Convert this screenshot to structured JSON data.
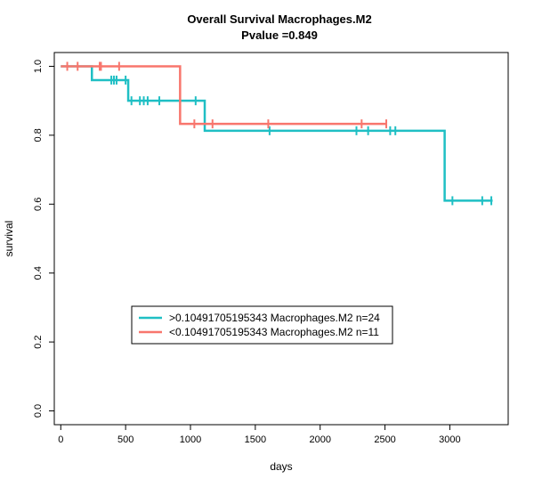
{
  "chart_data": {
    "type": "line",
    "subtype": "kaplan-meier",
    "title": "Overall Survival Macrophages.M2",
    "subtitle": "Pvalue =0.849",
    "xlabel": "days",
    "ylabel": "survival",
    "xlim": [
      -50,
      3450
    ],
    "ylim": [
      -0.04,
      1.04
    ],
    "xticks": [
      0,
      500,
      1000,
      1500,
      2000,
      2500,
      3000
    ],
    "yticks": [
      0.0,
      0.2,
      0.4,
      0.6,
      0.8,
      1.0
    ],
    "ytick_labels": [
      "0.0",
      "0.2",
      "0.4",
      "0.6",
      "0.8",
      "1.0"
    ],
    "grid": false,
    "legend_position": "bottom-center",
    "series": [
      {
        "name": ">0.10491705195343 Macrophages.M2 n=24",
        "color": "#1fbfc4",
        "steps": [
          {
            "x": 0,
            "y": 1.0
          },
          {
            "x": 240,
            "y": 0.96
          },
          {
            "x": 520,
            "y": 0.9
          },
          {
            "x": 1110,
            "y": 0.813
          },
          {
            "x": 2960,
            "y": 0.61
          },
          {
            "x": 3330,
            "y": 0.61
          }
        ],
        "censors": [
          {
            "x": 390,
            "y": 0.96
          },
          {
            "x": 410,
            "y": 0.96
          },
          {
            "x": 430,
            "y": 0.96
          },
          {
            "x": 500,
            "y": 0.96
          },
          {
            "x": 545,
            "y": 0.9
          },
          {
            "x": 610,
            "y": 0.9
          },
          {
            "x": 640,
            "y": 0.9
          },
          {
            "x": 670,
            "y": 0.9
          },
          {
            "x": 760,
            "y": 0.9
          },
          {
            "x": 1040,
            "y": 0.9
          },
          {
            "x": 1610,
            "y": 0.813
          },
          {
            "x": 2280,
            "y": 0.813
          },
          {
            "x": 2370,
            "y": 0.813
          },
          {
            "x": 2540,
            "y": 0.813
          },
          {
            "x": 2580,
            "y": 0.813
          },
          {
            "x": 3020,
            "y": 0.61
          },
          {
            "x": 3250,
            "y": 0.61
          },
          {
            "x": 3320,
            "y": 0.61
          }
        ]
      },
      {
        "name": "<0.10491705195343 Macrophages.M2 n=11",
        "color": "#f8766d",
        "steps": [
          {
            "x": 0,
            "y": 1.0
          },
          {
            "x": 920,
            "y": 0.833
          },
          {
            "x": 2510,
            "y": 0.833
          }
        ],
        "censors": [
          {
            "x": 50,
            "y": 1.0
          },
          {
            "x": 130,
            "y": 1.0
          },
          {
            "x": 300,
            "y": 1.0
          },
          {
            "x": 310,
            "y": 1.0
          },
          {
            "x": 450,
            "y": 1.0
          },
          {
            "x": 1030,
            "y": 0.833
          },
          {
            "x": 1170,
            "y": 0.833
          },
          {
            "x": 1600,
            "y": 0.833
          },
          {
            "x": 2320,
            "y": 0.833
          },
          {
            "x": 2510,
            "y": 0.833
          }
        ]
      }
    ]
  }
}
